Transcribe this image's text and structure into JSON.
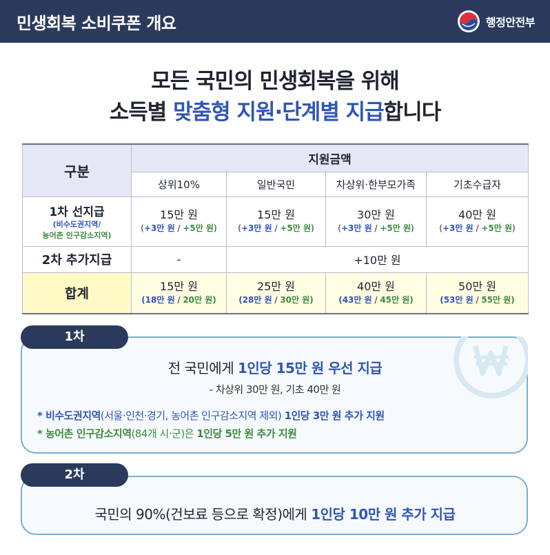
{
  "header": {
    "title": "민생회복 소비쿠폰 개요",
    "ministry": "행정안전부"
  },
  "headline": {
    "line1": "모든 국민의 민생회복을 위해",
    "line2_pre": "소득별 ",
    "line2_hl": "맞춤형 지원·단계별 지급",
    "line2_post": "합니다"
  },
  "table": {
    "gubun": "구분",
    "amount_header": "지원금액",
    "columns": [
      "상위10%",
      "일반국민",
      "차상위·한부모가족",
      "기초수급자"
    ],
    "row1": {
      "label": "1차 선지급",
      "label_sub_blue": "(비수도권지역/",
      "label_sub_green": "농어촌 인구감소지역)",
      "cells": [
        {
          "main": "15만 원",
          "open": "(",
          "blue": "+3만 원",
          "sep": " / ",
          "green": "+5만 원",
          "close": ")"
        },
        {
          "main": "15만 원",
          "open": "(",
          "blue": "+3만 원",
          "sep": " / ",
          "green": "+5만 원",
          "close": ")"
        },
        {
          "main": "30만 원",
          "open": "(",
          "blue": "+3만 원",
          "sep": " / ",
          "green": "+5만 원",
          "close": ")"
        },
        {
          "main": "40만 원",
          "open": "(",
          "blue": "+3만 원",
          "sep": " / ",
          "green": "+5만 원",
          "close": ")"
        }
      ]
    },
    "row2": {
      "label": "2차 추가지급",
      "first": "-",
      "rest": "+10만 원"
    },
    "row3": {
      "label": "합계",
      "cells": [
        {
          "main": "15만 원",
          "open": "(",
          "blue": "18만 원",
          "sep": " / ",
          "green": "20만 원",
          "close": ")"
        },
        {
          "main": "25만 원",
          "open": "(",
          "blue": "28만 원",
          "sep": " / ",
          "green": "30만 원",
          "close": ")"
        },
        {
          "main": "40만 원",
          "open": "(",
          "blue": "43만 원",
          "sep": " / ",
          "green": "45만 원",
          "close": ")"
        },
        {
          "main": "50만 원",
          "open": "(",
          "blue": "53만 원",
          "sep": " / ",
          "green": "55만 원",
          "close": ")"
        }
      ]
    }
  },
  "phase1": {
    "tag": "1차",
    "line1_pre": "전 국민에게 ",
    "line1_bold": "1인당 15만 원 우선 지급",
    "line2": "- 차상위 30만 원, 기초 40만 원",
    "line3_a": "* 비수도권지역",
    "line3_b": "(서울·인천·경기, 농어촌 인구감소지역 제외) ",
    "line3_c": "1인당 3만 원 추가 지원",
    "line4_a": "* 농어촌 인구감소지역",
    "line4_b": "(84개 시·군)은 ",
    "line4_c": "1인당 5만 원 추가 지원"
  },
  "phase2": {
    "tag": "2차",
    "line_pre": "국민의 90%(건보료 등으로 확정)에게 ",
    "line_bold": "1인당 10만 원 추가 지급"
  },
  "colors": {
    "header_bg": "#2b3a5c",
    "blue": "#2f55b5",
    "green": "#3d8a3f",
    "total_row_bg": "#fffde2",
    "box_border": "#7aaed0"
  }
}
